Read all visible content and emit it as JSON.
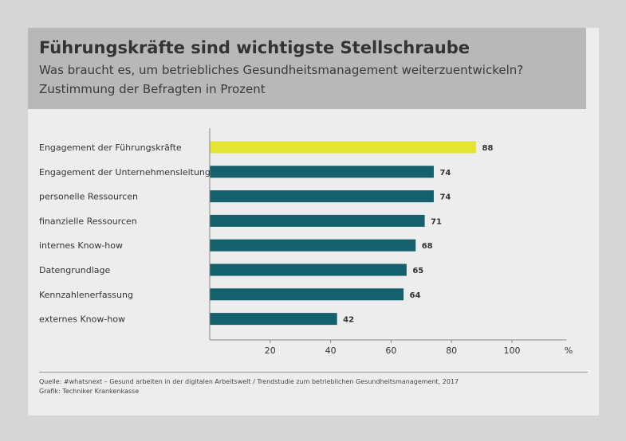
{
  "header": {
    "title": "Führungskräfte sind wichtigste Stellschraube",
    "subtitle_line1": "Was braucht es, um betriebliches Gesundheitsmanagement weiterzuentwickeln?",
    "subtitle_line2": "Zustimmung der Befragten in Prozent"
  },
  "footer": {
    "source": "Quelle: #whatsnext – Gesund arbeiten in der digitalen Arbeitswelt / Trendstudie zum betrieblichen Gesundheitsmanagement, 2017",
    "credit": "Grafik: Techniker Krankenkasse"
  },
  "colors": {
    "highlight": "#e3e532",
    "bar": "#14616d",
    "axis": "#888888",
    "text": "#333333"
  },
  "chart_data": {
    "type": "bar",
    "orientation": "horizontal",
    "categories": [
      "Engagement der Führungskräfte",
      "Engagement der Unternehmensleitung",
      "personelle Ressourcen",
      "finanzielle Ressourcen",
      "internes Know-how",
      "Datengrundlage",
      "Kennzahlenerfassung",
      "externes Know-how"
    ],
    "values": [
      88,
      74,
      74,
      71,
      68,
      65,
      64,
      42
    ],
    "highlight_index": 0,
    "xticks": [
      20,
      40,
      60,
      80,
      100
    ],
    "xunit": "%",
    "xlim": [
      0,
      118
    ],
    "grid": false
  }
}
